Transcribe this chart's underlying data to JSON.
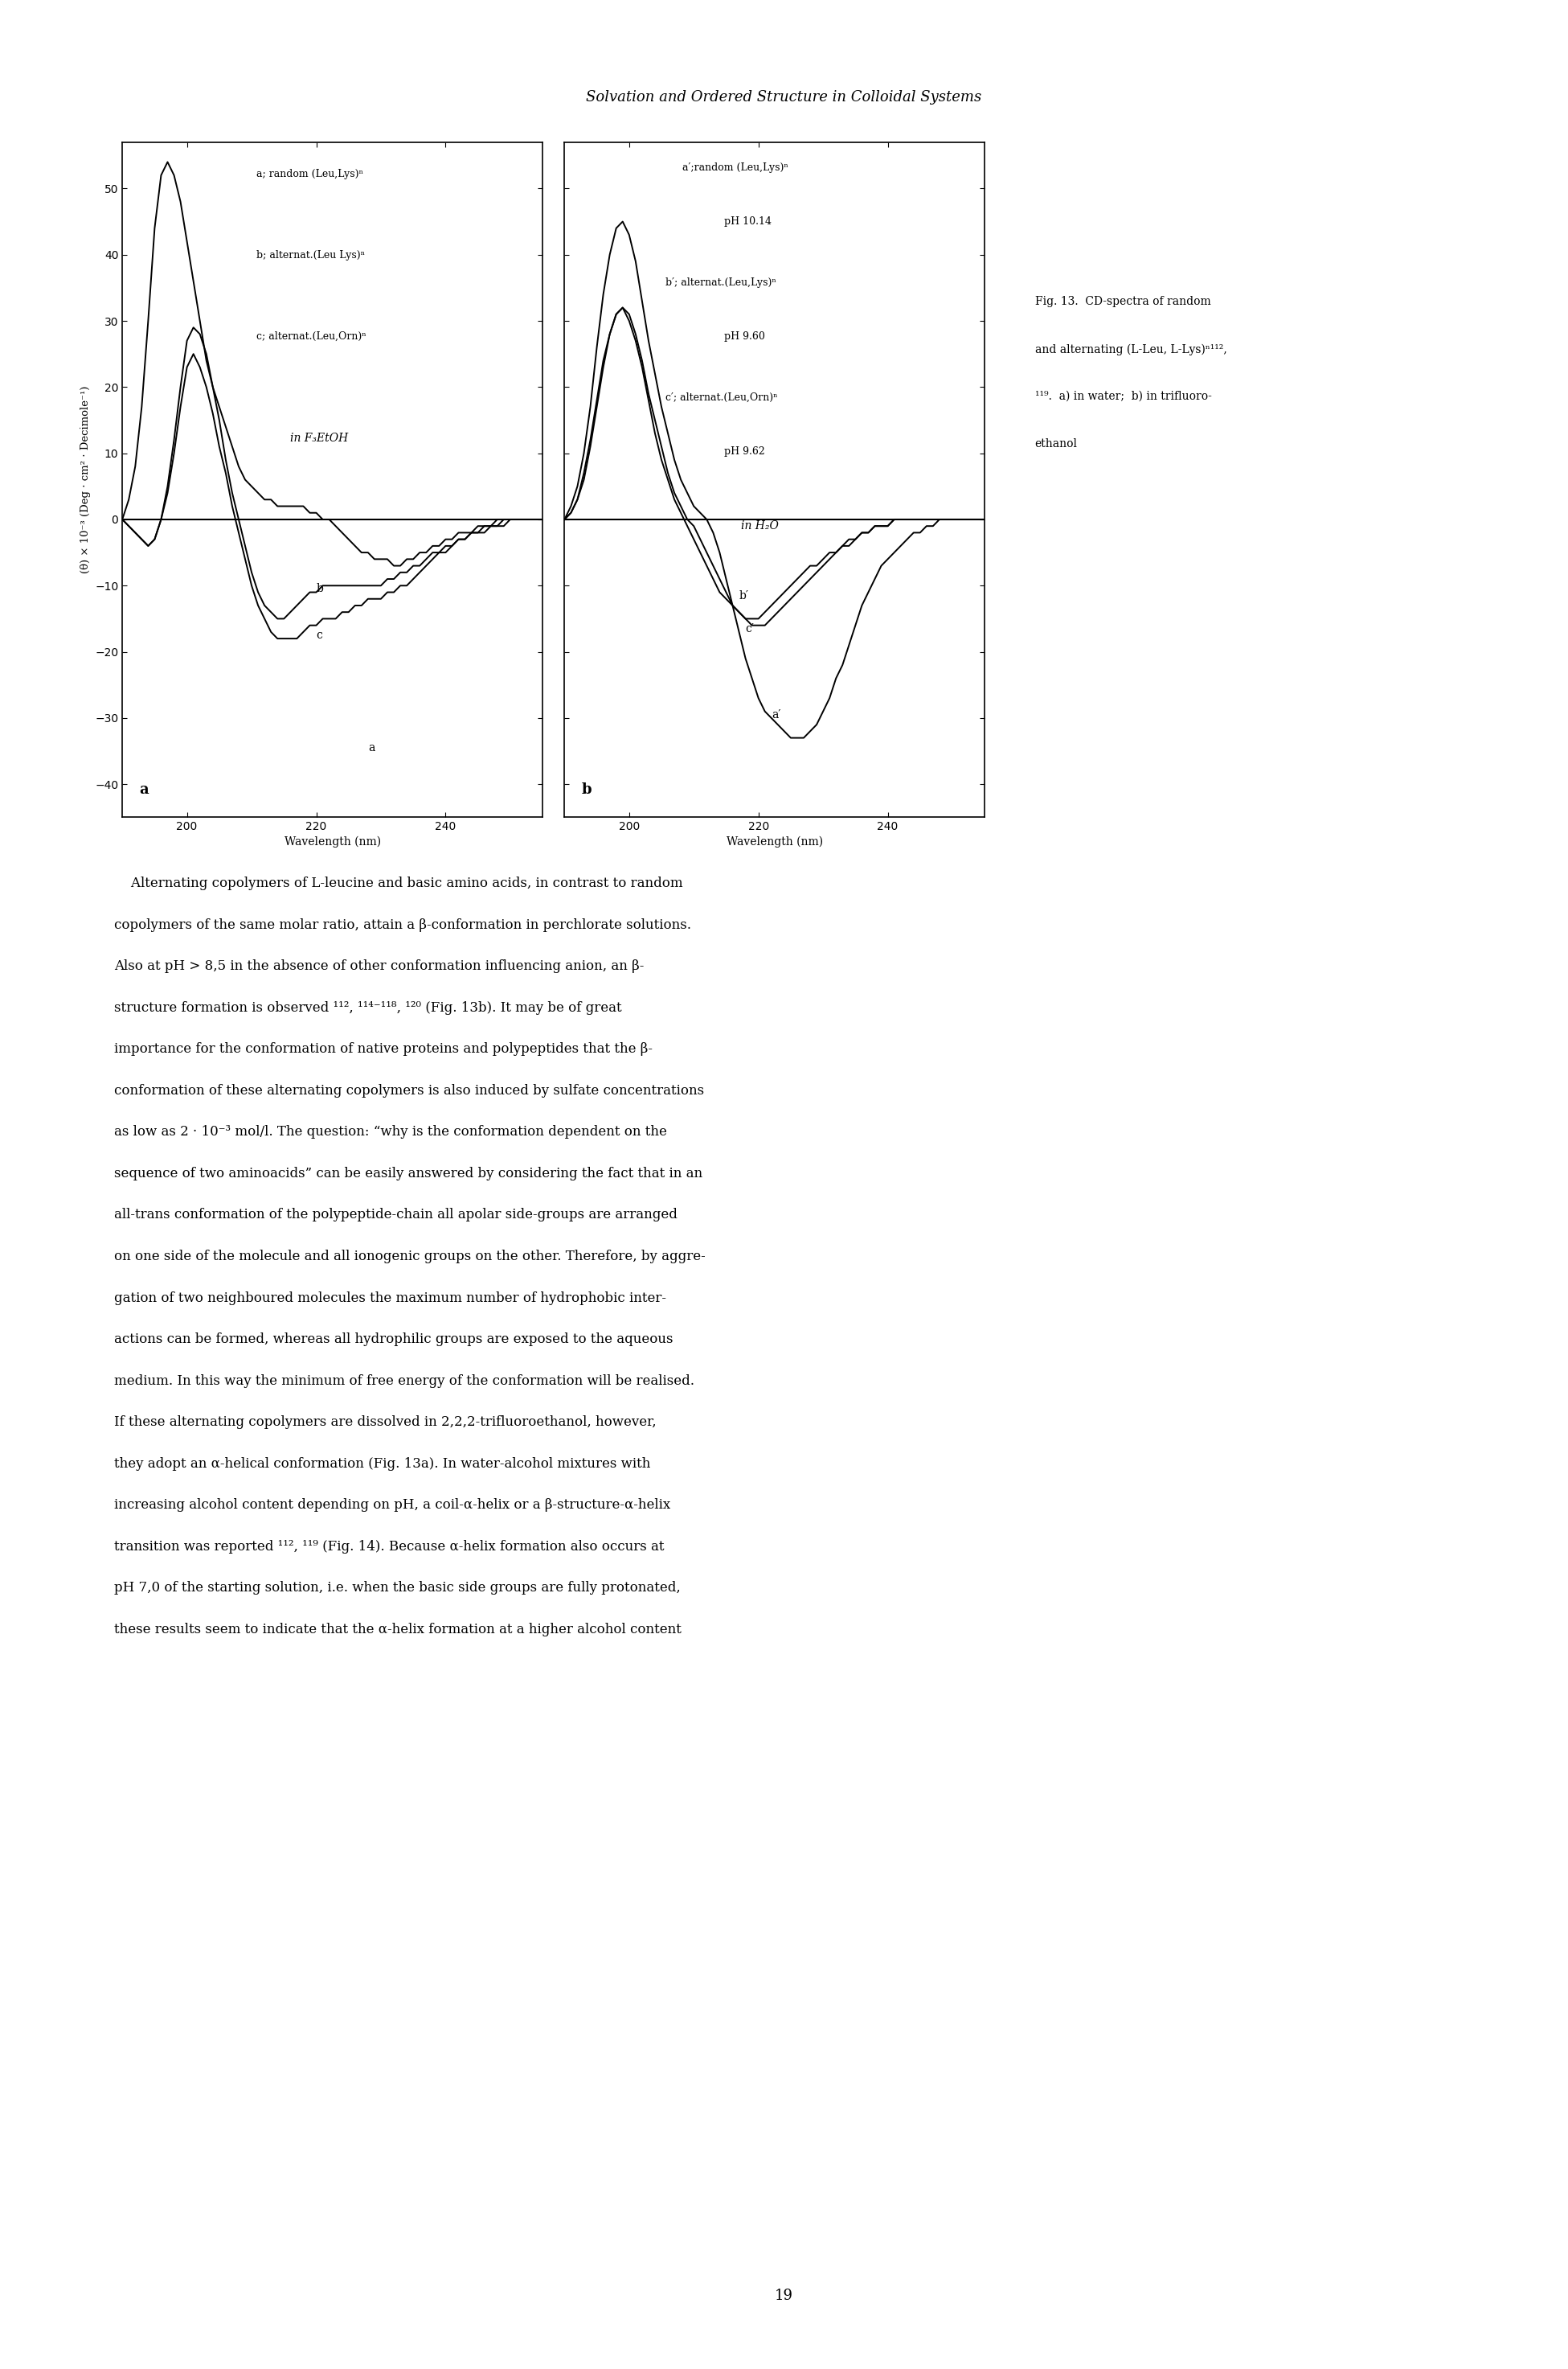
{
  "title_header": "Solvation and Ordered Structure in Colloidal Systems",
  "ylim": [
    -45,
    57
  ],
  "yticks": [
    -40,
    -30,
    -20,
    -10,
    0,
    10,
    20,
    30,
    40,
    50
  ],
  "xlim": [
    190,
    255
  ],
  "xticks": [
    200,
    220,
    240
  ],
  "ylabel": "(θ) × 10⁻³ (Deg · cm² · Decimole⁻¹)",
  "xlabel": "Wavelength (nm)",
  "panel_a_label": "a",
  "panel_b_label": "b",
  "panel_a_legend_lines": [
    "a; random (Leu,Lys)ⁿ",
    "b; alternat.(Leu Lys)ⁿ",
    "c; alternat.(Leu,Orn)ⁿ",
    "in F₃EtOH"
  ],
  "panel_b_legend_lines": [
    "a′;random (Leu,Lys)ⁿ",
    "pH 10.14",
    "b′; alternat.(Leu,Lys)ⁿ",
    "pH 9.60",
    "c′; alternat.(Leu,Orn)ⁿ",
    "pH 9.62",
    "in H₂O"
  ],
  "fig_caption_lines": [
    "Fig. 13.  CD-spectra of random",
    "and alternating (L-Leu, L-Lys)ⁿ¹¹²,",
    "¹¹⁹.  a) in water;  b) in trifluoro-",
    "ethanol"
  ],
  "panel_a": {
    "curve_a_x": [
      190,
      191,
      192,
      193,
      194,
      195,
      196,
      197,
      198,
      199,
      200,
      201,
      202,
      203,
      204,
      205,
      206,
      207,
      208,
      209,
      210,
      211,
      212,
      213,
      214,
      215,
      216,
      217,
      218,
      219,
      220,
      221,
      222,
      223,
      224,
      225,
      226,
      227,
      228,
      229,
      230,
      231,
      232,
      233,
      234,
      235,
      236,
      237,
      238,
      239,
      240,
      241,
      242,
      243,
      244,
      245,
      246,
      247,
      248,
      249,
      250,
      251,
      252,
      253,
      254,
      255
    ],
    "curve_a_y": [
      0,
      3,
      8,
      17,
      30,
      44,
      52,
      54,
      52,
      48,
      42,
      36,
      30,
      24,
      20,
      17,
      14,
      11,
      8,
      6,
      5,
      4,
      3,
      3,
      2,
      2,
      2,
      2,
      2,
      1,
      1,
      0,
      0,
      -1,
      -2,
      -3,
      -4,
      -5,
      -5,
      -6,
      -6,
      -6,
      -7,
      -7,
      -6,
      -6,
      -5,
      -5,
      -4,
      -4,
      -3,
      -3,
      -2,
      -2,
      -2,
      -1,
      -1,
      -1,
      0,
      0,
      0,
      0,
      0,
      0,
      0,
      0
    ],
    "curve_b_x": [
      190,
      191,
      192,
      193,
      194,
      195,
      196,
      197,
      198,
      199,
      200,
      201,
      202,
      203,
      204,
      205,
      206,
      207,
      208,
      209,
      210,
      211,
      212,
      213,
      214,
      215,
      216,
      217,
      218,
      219,
      220,
      221,
      222,
      223,
      224,
      225,
      226,
      227,
      228,
      229,
      230,
      231,
      232,
      233,
      234,
      235,
      236,
      237,
      238,
      239,
      240,
      241,
      242,
      243,
      244,
      245,
      246,
      247,
      248,
      249,
      250,
      251,
      252,
      253,
      254,
      255
    ],
    "curve_b_y": [
      0,
      -1,
      -2,
      -3,
      -4,
      -3,
      0,
      5,
      12,
      20,
      27,
      29,
      28,
      25,
      20,
      15,
      9,
      4,
      0,
      -4,
      -8,
      -11,
      -13,
      -14,
      -15,
      -15,
      -14,
      -13,
      -12,
      -11,
      -11,
      -10,
      -10,
      -10,
      -10,
      -10,
      -10,
      -10,
      -10,
      -10,
      -10,
      -9,
      -9,
      -8,
      -8,
      -7,
      -7,
      -6,
      -5,
      -5,
      -4,
      -4,
      -3,
      -3,
      -2,
      -2,
      -2,
      -1,
      -1,
      -1,
      0,
      0,
      0,
      0,
      0,
      0
    ],
    "curve_c_x": [
      190,
      191,
      192,
      193,
      194,
      195,
      196,
      197,
      198,
      199,
      200,
      201,
      202,
      203,
      204,
      205,
      206,
      207,
      208,
      209,
      210,
      211,
      212,
      213,
      214,
      215,
      216,
      217,
      218,
      219,
      220,
      221,
      222,
      223,
      224,
      225,
      226,
      227,
      228,
      229,
      230,
      231,
      232,
      233,
      234,
      235,
      236,
      237,
      238,
      239,
      240,
      241,
      242,
      243,
      244,
      245,
      246,
      247,
      248,
      249,
      250,
      251,
      252,
      253,
      254,
      255
    ],
    "curve_c_y": [
      0,
      -1,
      -2,
      -3,
      -4,
      -3,
      0,
      4,
      10,
      17,
      23,
      25,
      23,
      20,
      16,
      11,
      7,
      2,
      -2,
      -6,
      -10,
      -13,
      -15,
      -17,
      -18,
      -18,
      -18,
      -18,
      -17,
      -16,
      -16,
      -15,
      -15,
      -15,
      -14,
      -14,
      -13,
      -13,
      -12,
      -12,
      -12,
      -11,
      -11,
      -10,
      -10,
      -9,
      -8,
      -7,
      -6,
      -5,
      -5,
      -4,
      -3,
      -3,
      -2,
      -2,
      -1,
      -1,
      -1,
      0,
      0,
      0,
      0,
      0,
      0,
      0
    ]
  },
  "panel_b": {
    "curve_a_x": [
      190,
      191,
      192,
      193,
      194,
      195,
      196,
      197,
      198,
      199,
      200,
      201,
      202,
      203,
      204,
      205,
      206,
      207,
      208,
      209,
      210,
      211,
      212,
      213,
      214,
      215,
      216,
      217,
      218,
      219,
      220,
      221,
      222,
      223,
      224,
      225,
      226,
      227,
      228,
      229,
      230,
      231,
      232,
      233,
      234,
      235,
      236,
      237,
      238,
      239,
      240,
      241,
      242,
      243,
      244,
      245,
      246,
      247,
      248,
      249,
      250,
      251,
      252,
      253,
      254,
      255
    ],
    "curve_a_y": [
      0,
      2,
      5,
      10,
      17,
      26,
      34,
      40,
      44,
      45,
      43,
      39,
      33,
      27,
      22,
      17,
      13,
      9,
      6,
      4,
      2,
      1,
      0,
      -2,
      -5,
      -9,
      -13,
      -17,
      -21,
      -24,
      -27,
      -29,
      -30,
      -31,
      -32,
      -33,
      -33,
      -33,
      -32,
      -31,
      -29,
      -27,
      -24,
      -22,
      -19,
      -16,
      -13,
      -11,
      -9,
      -7,
      -6,
      -5,
      -4,
      -3,
      -2,
      -2,
      -1,
      -1,
      0,
      0,
      0,
      0,
      0,
      0,
      0,
      0
    ],
    "curve_b_x": [
      190,
      191,
      192,
      193,
      194,
      195,
      196,
      197,
      198,
      199,
      200,
      201,
      202,
      203,
      204,
      205,
      206,
      207,
      208,
      209,
      210,
      211,
      212,
      213,
      214,
      215,
      216,
      217,
      218,
      219,
      220,
      221,
      222,
      223,
      224,
      225,
      226,
      227,
      228,
      229,
      230,
      231,
      232,
      233,
      234,
      235,
      236,
      237,
      238,
      239,
      240,
      241,
      242,
      243,
      244,
      245,
      246,
      247,
      248,
      249,
      250,
      251,
      252,
      253,
      254,
      255
    ],
    "curve_b_y": [
      0,
      1,
      3,
      6,
      11,
      17,
      23,
      28,
      31,
      32,
      31,
      28,
      24,
      19,
      15,
      11,
      7,
      4,
      2,
      0,
      -1,
      -3,
      -5,
      -7,
      -9,
      -11,
      -13,
      -14,
      -15,
      -16,
      -16,
      -16,
      -15,
      -14,
      -13,
      -12,
      -11,
      -10,
      -9,
      -8,
      -7,
      -6,
      -5,
      -4,
      -4,
      -3,
      -2,
      -2,
      -1,
      -1,
      -1,
      0,
      0,
      0,
      0,
      0,
      0,
      0,
      0,
      0,
      0,
      0,
      0,
      0,
      0,
      0
    ],
    "curve_c_x": [
      190,
      191,
      192,
      193,
      194,
      195,
      196,
      197,
      198,
      199,
      200,
      201,
      202,
      203,
      204,
      205,
      206,
      207,
      208,
      209,
      210,
      211,
      212,
      213,
      214,
      215,
      216,
      217,
      218,
      219,
      220,
      221,
      222,
      223,
      224,
      225,
      226,
      227,
      228,
      229,
      230,
      231,
      232,
      233,
      234,
      235,
      236,
      237,
      238,
      239,
      240,
      241,
      242,
      243,
      244,
      245,
      246,
      247,
      248,
      249,
      250,
      251,
      252,
      253,
      254,
      255
    ],
    "curve_c_y": [
      0,
      1,
      3,
      7,
      12,
      18,
      24,
      28,
      31,
      32,
      30,
      27,
      23,
      18,
      13,
      9,
      6,
      3,
      1,
      -1,
      -3,
      -5,
      -7,
      -9,
      -11,
      -12,
      -13,
      -14,
      -15,
      -15,
      -15,
      -14,
      -13,
      -12,
      -11,
      -10,
      -9,
      -8,
      -7,
      -7,
      -6,
      -5,
      -5,
      -4,
      -3,
      -3,
      -2,
      -2,
      -1,
      -1,
      -1,
      0,
      0,
      0,
      0,
      0,
      0,
      0,
      0,
      0,
      0,
      0,
      0,
      0,
      0,
      0
    ]
  },
  "body_text_lines": [
    "    Alternating copolymers of L-leucine and basic amino acids, in contrast to random",
    "copolymers of the same molar ratio, attain a β-conformation in perchlorate solutions.",
    "Also at pH > 8,5 in the absence of other conformation influencing anion, an β-",
    "structure formation is observed ¹¹², ¹¹⁴⁻¹¹⁸, ¹²⁰ (Fig. 13b). It may be of great",
    "importance for the conformation of native proteins and polypeptides that the β-",
    "conformation of these alternating copolymers is also induced by sulfate concentrations",
    "as low as 2 · 10⁻³ mol/l. The question: “why is the conformation dependent on the",
    "sequence of two aminoacids” can be easily answered by considering the fact that in an",
    "all-trans conformation of the polypeptide-chain all apolar side-groups are arranged",
    "on one side of the molecule and all ionogenic groups on the other. Therefore, by aggre-",
    "gation of two neighboured molecules the maximum number of hydrophobic inter-",
    "actions can be formed, whereas all hydrophilic groups are exposed to the aqueous",
    "medium. In this way the minimum of free energy of the conformation will be realised.",
    "If these alternating copolymers are dissolved in 2,2,2-trifluoroethanol, however,",
    "they adopt an α-helical conformation (Fig. 13a). In water-alcohol mixtures with",
    "increasing alcohol content depending on pH, a coil-α-helix or a β-structure-α-helix",
    "transition was reported ¹¹², ¹¹⁹ (Fig. 14). Because α-helix formation also occurs at",
    "pH 7,0 of the starting solution, i.e. when the basic side groups are fully protonated,",
    "these results seem to indicate that the α-helix formation at a higher alcohol content"
  ],
  "page_number": "19"
}
